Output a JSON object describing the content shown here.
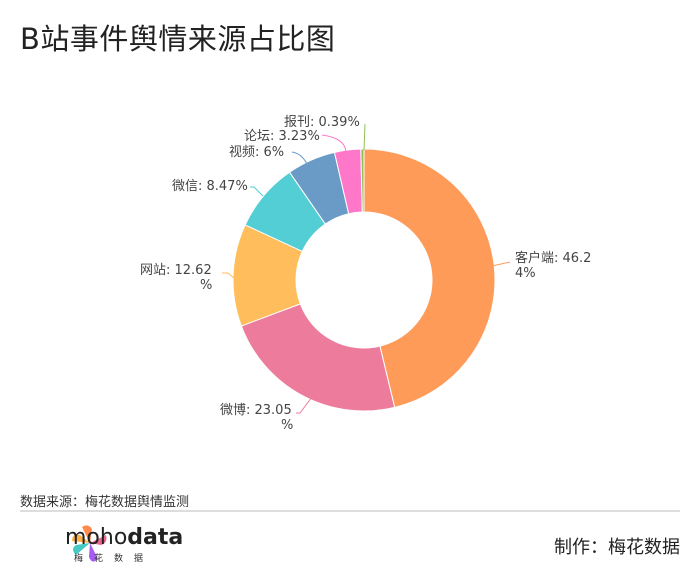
{
  "title": "B站事件舆情来源占比图",
  "chart_data": {
    "type": "pie",
    "donut": true,
    "title": "B站事件舆情来源占比图",
    "slices": [
      {
        "name": "客户端",
        "value": 46.24,
        "label": "客户端: 46.24%",
        "color": "#FF9B58"
      },
      {
        "name": "微博",
        "value": 23.05,
        "label": "微博: 23.05%",
        "color": "#ED7B9B"
      },
      {
        "name": "网站",
        "value": 12.62,
        "label": "网站: 12.62%",
        "color": "#FFBD5B"
      },
      {
        "name": "微信",
        "value": 8.47,
        "label": "微信: 8.47%",
        "color": "#53CED4"
      },
      {
        "name": "视频",
        "value": 6,
        "label": "视频: 6%",
        "color": "#6A9BC7"
      },
      {
        "name": "论坛",
        "value": 3.23,
        "label": "论坛: 3.23%",
        "color": "#FF77C9"
      },
      {
        "name": "报刊",
        "value": 0.39,
        "label": "报刊: 0.39%",
        "color": "#8DC152"
      }
    ]
  },
  "footer": {
    "source": "数据来源：梅花数据舆情监测",
    "logo_text_light": "moho",
    "logo_text_bold": "data",
    "logo_sub": "梅花数据",
    "credit": "制作：梅花数据"
  }
}
